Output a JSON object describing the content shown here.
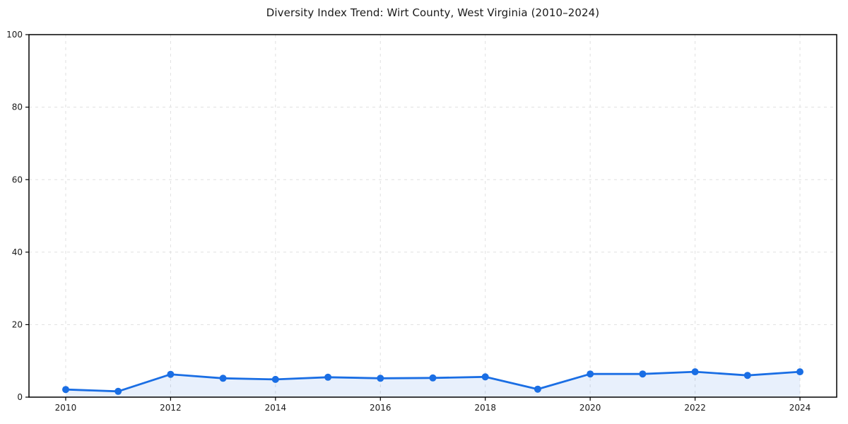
{
  "page": {
    "background": "#ffffff"
  },
  "chart_data": {
    "type": "line",
    "title": "Diversity Index Trend: Wirt County, West Virginia (2010–2024)",
    "x": [
      2010,
      2011,
      2012,
      2013,
      2014,
      2015,
      2016,
      2017,
      2018,
      2019,
      2020,
      2021,
      2022,
      2023,
      2024
    ],
    "values": [
      2.1,
      1.6,
      6.3,
      5.2,
      4.9,
      5.5,
      5.2,
      5.3,
      5.6,
      2.2,
      6.4,
      6.4,
      7.0,
      6.0,
      7.0
    ],
    "xlabel": "",
    "ylabel": "",
    "xlim": [
      2009.3,
      2024.7
    ],
    "ylim": [
      0,
      100
    ],
    "xticks": [
      2010,
      2012,
      2014,
      2016,
      2018,
      2020,
      2022,
      2024
    ],
    "yticks": [
      0,
      20,
      40,
      60,
      80,
      100
    ],
    "grid": true,
    "grid_style": "dashed",
    "legend": false,
    "marker": "circle",
    "colors": {
      "line": "#1a6ee4",
      "fill": "rgba(26,110,228,0.10)",
      "grid": "#e0e0e0",
      "spine": "#000000",
      "tick_text": "#1a1a1a",
      "title_text": "#1a1a1a"
    }
  }
}
